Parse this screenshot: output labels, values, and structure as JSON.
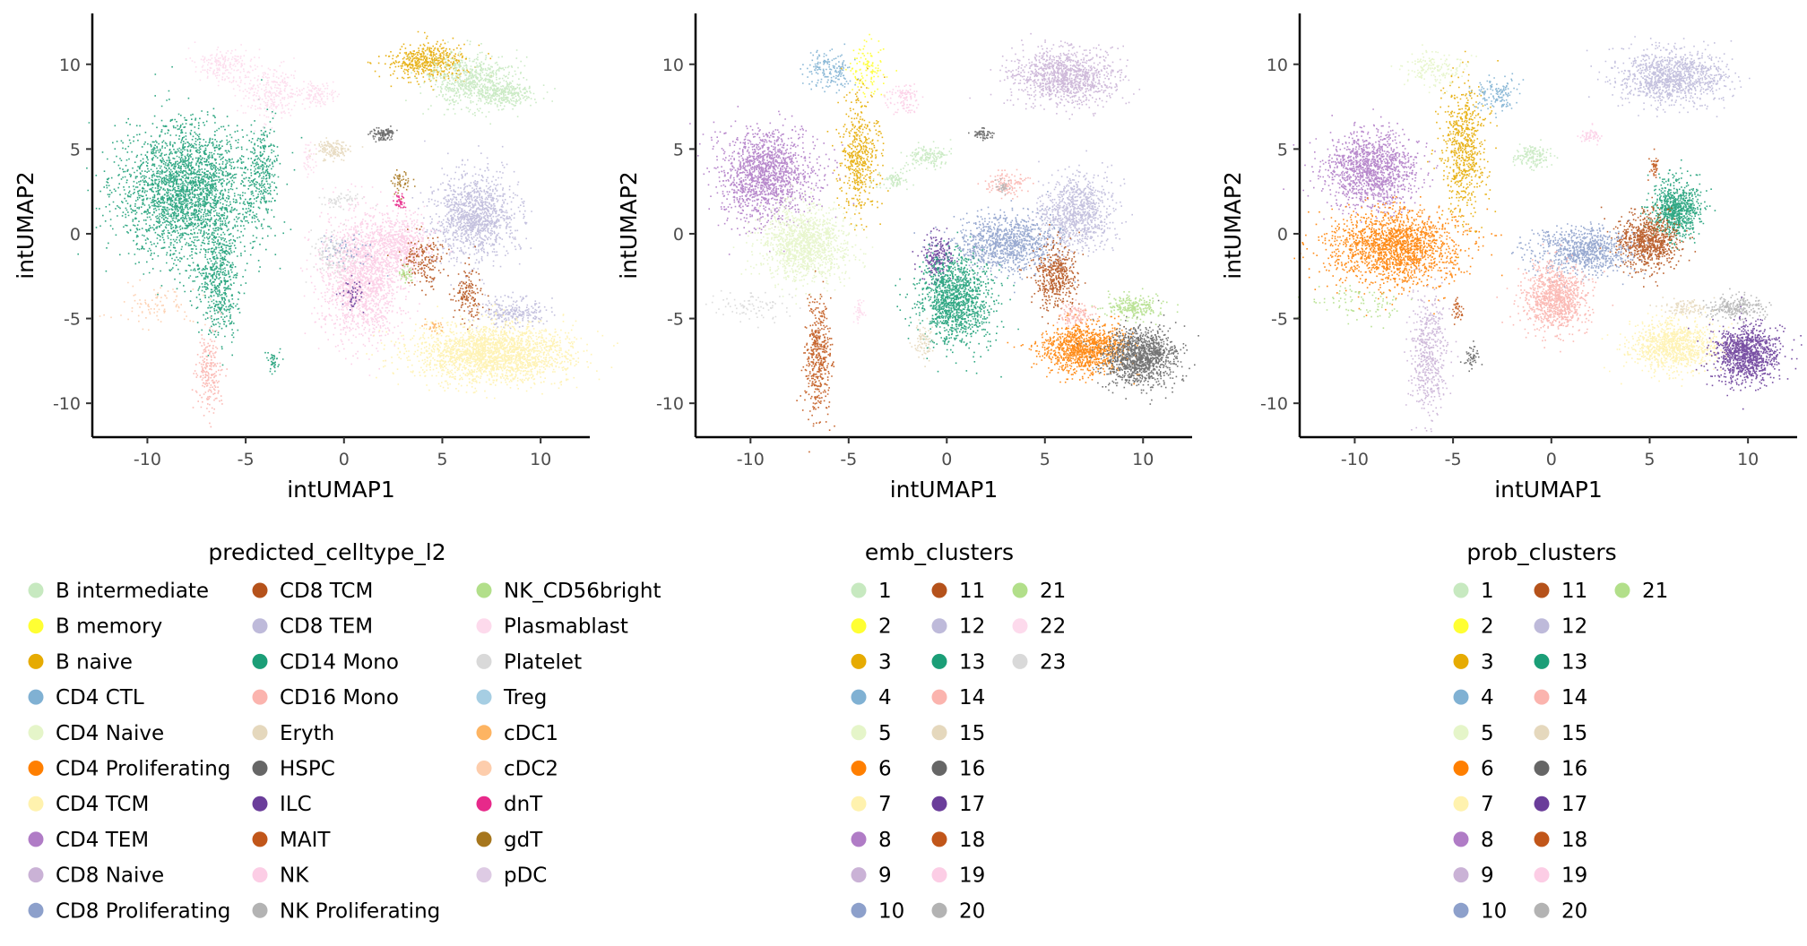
{
  "figure": {
    "panels": [
      {
        "x_label": "intUMAP1",
        "y_label": "intUMAP2",
        "legend_title": "predicted_celltype_l2",
        "legend_rows": 10
      },
      {
        "x_label": "intUMAP1",
        "y_label": "intUMAP2",
        "legend_title": "emb_clusters",
        "legend_rows": 10
      },
      {
        "x_label": "intUMAP1",
        "y_label": "intUMAP2",
        "legend_title": "prob_clusters",
        "legend_rows": 10
      }
    ]
  },
  "chart_data": [
    {
      "type": "scatter",
      "title": "",
      "xlabel": "intUMAP1",
      "ylabel": "intUMAP2",
      "xlim": [
        -12.8,
        12.5
      ],
      "ylim": [
        -12.0,
        13.0
      ],
      "xticks": [
        -10,
        -5,
        0,
        5,
        10
      ],
      "xtick_labels": [
        "-10",
        "-5",
        "0",
        "5",
        "10"
      ],
      "yticks": [
        -10,
        -5,
        0,
        5,
        10
      ],
      "ytick_labels": [
        "-10",
        "-5",
        "0",
        "5",
        "10"
      ],
      "grid": false,
      "legend_position": "bottom",
      "legend_title": "predicted_celltype_l2",
      "legend": [
        {
          "label": "B intermediate",
          "color": "#C7E9C0"
        },
        {
          "label": "B memory",
          "color": "#FFFF33"
        },
        {
          "label": "B naive",
          "color": "#E6AB02"
        },
        {
          "label": "CD4 CTL",
          "color": "#80B1D3"
        },
        {
          "label": "CD4 Naive",
          "color": "#E5F5C9"
        },
        {
          "label": "CD4 Proliferating",
          "color": "#FF7F00"
        },
        {
          "label": "CD4 TCM",
          "color": "#FFF2AE"
        },
        {
          "label": "CD4 TEM",
          "color": "#B07CC6"
        },
        {
          "label": "CD8 Naive",
          "color": "#CAB2D6"
        },
        {
          "label": "CD8 Proliferating",
          "color": "#8DA0CB"
        },
        {
          "label": "CD8 TCM",
          "color": "#B5521B"
        },
        {
          "label": "CD8 TEM",
          "color": "#BEBADA"
        },
        {
          "label": "CD14 Mono",
          "color": "#1B9E77"
        },
        {
          "label": "CD16 Mono",
          "color": "#FBB4AE"
        },
        {
          "label": "Eryth",
          "color": "#E5D8BD"
        },
        {
          "label": "HSPC",
          "color": "#666666"
        },
        {
          "label": "ILC",
          "color": "#6A3D9A"
        },
        {
          "label": "MAIT",
          "color": "#C1561A"
        },
        {
          "label": "NK",
          "color": "#FCCDE5"
        },
        {
          "label": "NK Proliferating",
          "color": "#B3B3B3"
        },
        {
          "label": "NK_CD56bright",
          "color": "#B2DF8A"
        },
        {
          "label": "Plasmablast",
          "color": "#FDDAEC"
        },
        {
          "label": "Platelet",
          "color": "#D9D9D9"
        },
        {
          "label": "Treg",
          "color": "#A6CEE3"
        },
        {
          "label": "cDC1",
          "color": "#FDB462"
        },
        {
          "label": "cDC2",
          "color": "#FDCDAC"
        },
        {
          "label": "dnT",
          "color": "#E7298A"
        },
        {
          "label": "gdT",
          "color": "#A6761D"
        },
        {
          "label": "pDC",
          "color": "#DECBE4"
        }
      ],
      "clusters": [
        {
          "cat": 12,
          "cx": -8.0,
          "cy": 2.5,
          "rx": 3.1,
          "ry": 3.6,
          "n": 2600
        },
        {
          "cat": 12,
          "cx": -6.4,
          "cy": -2.8,
          "rx": 1.0,
          "ry": 2.8,
          "n": 500
        },
        {
          "cat": 12,
          "cx": -4.2,
          "cy": 3.6,
          "rx": 0.7,
          "ry": 2.8,
          "n": 260
        },
        {
          "cat": 12,
          "cx": -3.6,
          "cy": -7.5,
          "rx": 0.3,
          "ry": 0.5,
          "n": 40
        },
        {
          "cat": 13,
          "cx": -6.9,
          "cy": -8.2,
          "rx": 0.6,
          "ry": 2.2,
          "n": 220
        },
        {
          "cat": 25,
          "cx": -9.5,
          "cy": -4.2,
          "rx": 2.2,
          "ry": 1.0,
          "n": 90
        },
        {
          "cat": 21,
          "cx": -6.0,
          "cy": 10.0,
          "rx": 1.3,
          "ry": 0.9,
          "n": 200
        },
        {
          "cat": 21,
          "cx": -3.8,
          "cy": 8.4,
          "rx": 1.3,
          "ry": 1.4,
          "n": 260
        },
        {
          "cat": 21,
          "cx": -1.5,
          "cy": 8.3,
          "rx": 1.0,
          "ry": 0.6,
          "n": 120
        },
        {
          "cat": 21,
          "cx": -1.8,
          "cy": 4.3,
          "rx": 0.3,
          "ry": 0.9,
          "n": 40
        },
        {
          "cat": 14,
          "cx": -0.6,
          "cy": 5.0,
          "rx": 0.9,
          "ry": 0.5,
          "n": 150
        },
        {
          "cat": 22,
          "cx": -0.3,
          "cy": 2.0,
          "rx": 0.9,
          "ry": 0.4,
          "n": 60
        },
        {
          "cat": 2,
          "cx": 4.2,
          "cy": 10.2,
          "rx": 1.8,
          "ry": 0.9,
          "n": 500
        },
        {
          "cat": 0,
          "cx": 6.4,
          "cy": 9.0,
          "rx": 2.0,
          "ry": 1.4,
          "n": 650
        },
        {
          "cat": 0,
          "cx": 8.2,
          "cy": 8.3,
          "rx": 1.3,
          "ry": 0.6,
          "n": 250
        },
        {
          "cat": 15,
          "cx": 1.8,
          "cy": 5.9,
          "rx": 0.5,
          "ry": 0.3,
          "n": 60
        },
        {
          "cat": 11,
          "cx": 6.6,
          "cy": 1.0,
          "rx": 1.9,
          "ry": 2.3,
          "n": 1200
        },
        {
          "cat": 11,
          "cx": 8.5,
          "cy": -4.6,
          "rx": 1.6,
          "ry": 0.8,
          "n": 250
        },
        {
          "cat": 18,
          "cx": 0.9,
          "cy": -2.5,
          "rx": 1.8,
          "ry": 3.3,
          "n": 1800
        },
        {
          "cat": 18,
          "cx": 3.0,
          "cy": -0.5,
          "rx": 1.2,
          "ry": 1.5,
          "n": 500
        },
        {
          "cat": 16,
          "cx": 0.5,
          "cy": -3.5,
          "rx": 0.5,
          "ry": 0.9,
          "n": 50
        },
        {
          "cat": 10,
          "cx": 4.0,
          "cy": -1.5,
          "rx": 1.0,
          "ry": 1.6,
          "n": 180
        },
        {
          "cat": 10,
          "cx": 6.3,
          "cy": -3.6,
          "rx": 0.7,
          "ry": 1.5,
          "n": 150
        },
        {
          "cat": 6,
          "cx": 7.5,
          "cy": -7.0,
          "rx": 3.5,
          "ry": 1.5,
          "n": 2200
        },
        {
          "cat": 20,
          "cx": 3.0,
          "cy": -2.3,
          "rx": 0.4,
          "ry": 0.4,
          "n": 40
        },
        {
          "cat": 26,
          "cx": 2.8,
          "cy": 2.0,
          "rx": 0.2,
          "ry": 0.5,
          "n": 40
        },
        {
          "cat": 27,
          "cx": 2.8,
          "cy": 3.2,
          "rx": 0.5,
          "ry": 0.6,
          "n": 50
        },
        {
          "cat": 15,
          "cx": 2.2,
          "cy": 6.0,
          "rx": 0.4,
          "ry": 0.3,
          "n": 50
        },
        {
          "cat": 9,
          "cx": 0.0,
          "cy": -1.0,
          "rx": 1.2,
          "ry": 1.0,
          "n": 60
        },
        {
          "cat": 22,
          "cx": -0.5,
          "cy": -1.2,
          "rx": 1.0,
          "ry": 1.4,
          "n": 120
        },
        {
          "cat": 24,
          "cx": 4.5,
          "cy": -5.5,
          "rx": 0.4,
          "ry": 0.4,
          "n": 30
        }
      ]
    },
    {
      "type": "scatter",
      "title": "",
      "xlabel": "intUMAP1",
      "ylabel": "intUMAP2",
      "xlim": [
        -12.8,
        12.5
      ],
      "ylim": [
        -12.0,
        13.0
      ],
      "xticks": [
        -10,
        -5,
        0,
        5,
        10
      ],
      "xtick_labels": [
        "-10",
        "-5",
        "0",
        "5",
        "10"
      ],
      "yticks": [
        -10,
        -5,
        0,
        5,
        10
      ],
      "ytick_labels": [
        "-10",
        "-5",
        "0",
        "5",
        "10"
      ],
      "grid": false,
      "legend_position": "bottom",
      "legend_title": "emb_clusters",
      "legend": [
        {
          "label": "1",
          "color": "#C7E9C0"
        },
        {
          "label": "2",
          "color": "#FFFF33"
        },
        {
          "label": "3",
          "color": "#E6AB02"
        },
        {
          "label": "4",
          "color": "#80B1D3"
        },
        {
          "label": "5",
          "color": "#E5F5C9"
        },
        {
          "label": "6",
          "color": "#FF7F00"
        },
        {
          "label": "7",
          "color": "#FFF2AE"
        },
        {
          "label": "8",
          "color": "#B07CC6"
        },
        {
          "label": "9",
          "color": "#CAB2D6"
        },
        {
          "label": "10",
          "color": "#8DA0CB"
        },
        {
          "label": "11",
          "color": "#B5521B"
        },
        {
          "label": "12",
          "color": "#BEBADA"
        },
        {
          "label": "13",
          "color": "#1B9E77"
        },
        {
          "label": "14",
          "color": "#FBB4AE"
        },
        {
          "label": "15",
          "color": "#E5D8BD"
        },
        {
          "label": "16",
          "color": "#666666"
        },
        {
          "label": "17",
          "color": "#6A3D9A"
        },
        {
          "label": "18",
          "color": "#C1561A"
        },
        {
          "label": "19",
          "color": "#FCCDE5"
        },
        {
          "label": "20",
          "color": "#B3B3B3"
        },
        {
          "label": "21",
          "color": "#B2DF8A"
        },
        {
          "label": "22",
          "color": "#FDDAEC"
        },
        {
          "label": "23",
          "color": "#D9D9D9"
        }
      ],
      "clusters": [
        {
          "cat": 7,
          "cx": -9.2,
          "cy": 3.5,
          "rx": 2.2,
          "ry": 2.4,
          "n": 1500
        },
        {
          "cat": 4,
          "cx": -7.3,
          "cy": -0.6,
          "rx": 2.0,
          "ry": 2.0,
          "n": 1300
        },
        {
          "cat": 22,
          "cx": -9.8,
          "cy": -4.2,
          "rx": 1.8,
          "ry": 0.8,
          "n": 90
        },
        {
          "cat": 17,
          "cx": -6.6,
          "cy": -7.2,
          "rx": 0.6,
          "ry": 3.0,
          "n": 450
        },
        {
          "cat": 3,
          "cx": -6.0,
          "cy": 9.7,
          "rx": 1.2,
          "ry": 0.9,
          "n": 170
        },
        {
          "cat": 1,
          "cx": -4.0,
          "cy": 9.7,
          "rx": 0.8,
          "ry": 1.3,
          "n": 120
        },
        {
          "cat": 2,
          "cx": -4.5,
          "cy": 4.5,
          "rx": 0.9,
          "ry": 3.2,
          "n": 500
        },
        {
          "cat": 18,
          "cx": -2.2,
          "cy": 8.0,
          "rx": 0.8,
          "ry": 0.7,
          "n": 100
        },
        {
          "cat": 0,
          "cx": -1.0,
          "cy": 4.6,
          "rx": 0.9,
          "ry": 0.6,
          "n": 150
        },
        {
          "cat": 0,
          "cx": -2.7,
          "cy": 3.2,
          "rx": 0.8,
          "ry": 0.5,
          "n": 80
        },
        {
          "cat": 8,
          "cx": 6.0,
          "cy": 9.3,
          "rx": 2.4,
          "ry": 1.5,
          "n": 1100
        },
        {
          "cat": 15,
          "cx": 1.8,
          "cy": 5.9,
          "rx": 0.5,
          "ry": 0.3,
          "n": 60
        },
        {
          "cat": 13,
          "cx": 3.0,
          "cy": 3.0,
          "rx": 1.0,
          "ry": 0.8,
          "n": 120
        },
        {
          "cat": 11,
          "cx": 6.6,
          "cy": 1.3,
          "rx": 1.6,
          "ry": 1.9,
          "n": 900
        },
        {
          "cat": 9,
          "cx": 3.0,
          "cy": -0.5,
          "rx": 2.4,
          "ry": 1.5,
          "n": 1000
        },
        {
          "cat": 16,
          "cx": -0.5,
          "cy": -1.3,
          "rx": 0.7,
          "ry": 1.2,
          "n": 200
        },
        {
          "cat": 12,
          "cx": 0.4,
          "cy": -3.8,
          "rx": 1.6,
          "ry": 2.4,
          "n": 1300
        },
        {
          "cat": 10,
          "cx": 5.5,
          "cy": -2.5,
          "rx": 1.0,
          "ry": 1.8,
          "n": 450
        },
        {
          "cat": 5,
          "cx": 7.0,
          "cy": -6.7,
          "rx": 2.0,
          "ry": 1.3,
          "n": 1100
        },
        {
          "cat": 15,
          "cx": 9.8,
          "cy": -7.2,
          "rx": 1.7,
          "ry": 1.5,
          "n": 1200
        },
        {
          "cat": 20,
          "cx": 9.5,
          "cy": -4.3,
          "rx": 1.3,
          "ry": 0.6,
          "n": 250
        },
        {
          "cat": 13,
          "cx": 6.5,
          "cy": -4.8,
          "rx": 0.8,
          "ry": 0.6,
          "n": 120
        },
        {
          "cat": 14,
          "cx": -1.2,
          "cy": -6.2,
          "rx": 0.5,
          "ry": 1.0,
          "n": 80
        },
        {
          "cat": 21,
          "cx": -4.5,
          "cy": -4.5,
          "rx": 0.3,
          "ry": 0.6,
          "n": 40
        },
        {
          "cat": 19,
          "cx": 2.8,
          "cy": 2.8,
          "rx": 0.3,
          "ry": 0.4,
          "n": 30
        }
      ]
    },
    {
      "type": "scatter",
      "title": "",
      "xlabel": "intUMAP1",
      "ylabel": "intUMAP2",
      "xlim": [
        -12.8,
        12.5
      ],
      "ylim": [
        -12.0,
        13.0
      ],
      "xticks": [
        -10,
        -5,
        0,
        5,
        10
      ],
      "xtick_labels": [
        "-10",
        "-5",
        "0",
        "5",
        "10"
      ],
      "yticks": [
        -10,
        -5,
        0,
        5,
        10
      ],
      "ytick_labels": [
        "-10",
        "-5",
        "0",
        "5",
        "10"
      ],
      "grid": false,
      "legend_position": "bottom",
      "legend_title": "prob_clusters",
      "legend": [
        {
          "label": "1",
          "color": "#C7E9C0"
        },
        {
          "label": "2",
          "color": "#FFFF33"
        },
        {
          "label": "3",
          "color": "#E6AB02"
        },
        {
          "label": "4",
          "color": "#80B1D3"
        },
        {
          "label": "5",
          "color": "#E5F5C9"
        },
        {
          "label": "6",
          "color": "#FF7F00"
        },
        {
          "label": "7",
          "color": "#FFF2AE"
        },
        {
          "label": "8",
          "color": "#B07CC6"
        },
        {
          "label": "9",
          "color": "#CAB2D6"
        },
        {
          "label": "10",
          "color": "#8DA0CB"
        },
        {
          "label": "11",
          "color": "#B5521B"
        },
        {
          "label": "12",
          "color": "#BEBADA"
        },
        {
          "label": "13",
          "color": "#1B9E77"
        },
        {
          "label": "14",
          "color": "#FBB4AE"
        },
        {
          "label": "15",
          "color": "#E5D8BD"
        },
        {
          "label": "16",
          "color": "#666666"
        },
        {
          "label": "17",
          "color": "#6A3D9A"
        },
        {
          "label": "18",
          "color": "#C1561A"
        },
        {
          "label": "19",
          "color": "#FCCDE5"
        },
        {
          "label": "20",
          "color": "#B3B3B3"
        },
        {
          "label": "21",
          "color": "#B2DF8A"
        }
      ],
      "clusters": [
        {
          "cat": 7,
          "cx": -9.2,
          "cy": 3.8,
          "rx": 2.1,
          "ry": 2.0,
          "n": 1300
        },
        {
          "cat": 5,
          "cx": -8.0,
          "cy": -0.8,
          "rx": 3.0,
          "ry": 2.0,
          "n": 1800
        },
        {
          "cat": 8,
          "cx": -6.3,
          "cy": -7.0,
          "rx": 0.8,
          "ry": 3.2,
          "n": 500
        },
        {
          "cat": 20,
          "cx": -9.6,
          "cy": -4.0,
          "rx": 2.0,
          "ry": 1.0,
          "n": 90
        },
        {
          "cat": 4,
          "cx": -6.0,
          "cy": 9.8,
          "rx": 1.4,
          "ry": 1.0,
          "n": 180
        },
        {
          "cat": 2,
          "cx": -4.5,
          "cy": 5.0,
          "rx": 1.0,
          "ry": 3.5,
          "n": 650
        },
        {
          "cat": 3,
          "cx": -2.8,
          "cy": 8.3,
          "rx": 1.0,
          "ry": 0.8,
          "n": 140
        },
        {
          "cat": 0,
          "cx": -1.0,
          "cy": 4.6,
          "rx": 0.9,
          "ry": 0.6,
          "n": 150
        },
        {
          "cat": 11,
          "cx": 6.1,
          "cy": 9.3,
          "rx": 2.4,
          "ry": 1.5,
          "n": 1100
        },
        {
          "cat": 18,
          "cx": 2.0,
          "cy": 5.8,
          "rx": 0.6,
          "ry": 0.4,
          "n": 60
        },
        {
          "cat": 12,
          "cx": 6.3,
          "cy": 1.5,
          "rx": 1.1,
          "ry": 1.5,
          "n": 800
        },
        {
          "cat": 10,
          "cx": 4.8,
          "cy": -0.4,
          "rx": 1.4,
          "ry": 1.5,
          "n": 800
        },
        {
          "cat": 9,
          "cx": 1.5,
          "cy": -1.0,
          "rx": 2.2,
          "ry": 1.2,
          "n": 800
        },
        {
          "cat": 13,
          "cx": 0.2,
          "cy": -3.8,
          "rx": 1.4,
          "ry": 1.7,
          "n": 1000
        },
        {
          "cat": 6,
          "cx": 6.2,
          "cy": -6.6,
          "rx": 2.0,
          "ry": 1.3,
          "n": 1000
        },
        {
          "cat": 16,
          "cx": 9.9,
          "cy": -7.0,
          "rx": 1.5,
          "ry": 1.5,
          "n": 1100
        },
        {
          "cat": 19,
          "cx": 9.3,
          "cy": -4.3,
          "rx": 1.3,
          "ry": 0.6,
          "n": 250
        },
        {
          "cat": 14,
          "cx": 6.8,
          "cy": -4.3,
          "rx": 0.9,
          "ry": 0.5,
          "n": 100
        },
        {
          "cat": 17,
          "cx": -4.8,
          "cy": -4.5,
          "rx": 0.3,
          "ry": 0.6,
          "n": 40
        },
        {
          "cat": 15,
          "cx": -4.1,
          "cy": -7.3,
          "rx": 0.4,
          "ry": 0.6,
          "n": 50
        },
        {
          "cat": 17,
          "cx": 5.2,
          "cy": 4.0,
          "rx": 0.2,
          "ry": 0.6,
          "n": 40
        }
      ]
    }
  ]
}
